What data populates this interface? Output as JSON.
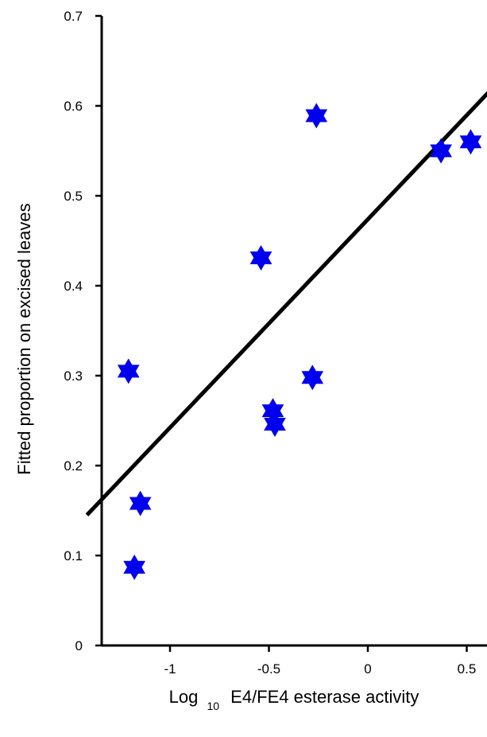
{
  "chart_data": {
    "type": "scatter",
    "title": "",
    "xlabel": {
      "prefix": "Log",
      "subscript": "10",
      "suffix": "E4/FE4 esterase activity"
    },
    "ylabel": "Fitted proportion on excised leaves",
    "xlim": [
      -1.42,
      0.52
    ],
    "ylim": [
      0,
      0.7
    ],
    "xticks": [
      -1,
      -0.5,
      0,
      0.5
    ],
    "xtick_labels": [
      "-1",
      "-0.5",
      "0",
      "0.5"
    ],
    "yticks": [
      0,
      0.1,
      0.2,
      0.3,
      0.4,
      0.5,
      0.6,
      0.7
    ],
    "ytick_labels": [
      "0",
      "0.1",
      "0.2",
      "0.3",
      "0.4",
      "0.5",
      "0.6",
      "0.7"
    ],
    "grid": false,
    "marker": "six-pointed-star",
    "marker_color": "#0000ee",
    "line_color": "#000000",
    "points": [
      {
        "x": -1.21,
        "y": 0.305
      },
      {
        "x": -1.15,
        "y": 0.158
      },
      {
        "x": -1.18,
        "y": 0.087
      },
      {
        "x": -0.54,
        "y": 0.431
      },
      {
        "x": -0.48,
        "y": 0.261
      },
      {
        "x": -0.47,
        "y": 0.246
      },
      {
        "x": -0.28,
        "y": 0.298
      },
      {
        "x": -0.26,
        "y": 0.589
      },
      {
        "x": 0.37,
        "y": 0.55
      },
      {
        "x": 0.52,
        "y": 0.56
      }
    ],
    "fit_line": {
      "x": [
        -1.42,
        0.64
      ],
      "y": [
        0.145,
        0.622
      ]
    }
  }
}
